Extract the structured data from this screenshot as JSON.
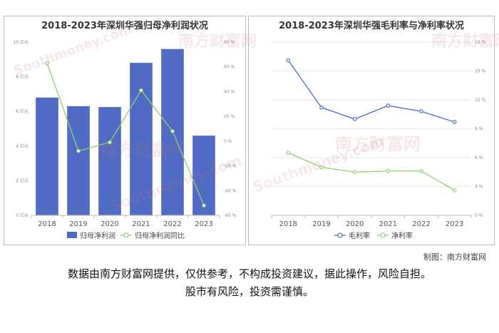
{
  "charts": [
    {
      "title": "2018-2023年深圳华强归母净利润状况"
    },
    {
      "title": "2018-2023年深圳华强毛利率与净利率状况"
    }
  ],
  "watermark": {
    "cn": "南方财富网",
    "en": "Southmoney.com"
  },
  "chart_data": [
    {
      "type": "bar",
      "title": "2018-2023年深圳华强归母净利润状况",
      "categories": [
        "2018",
        "2019",
        "2020",
        "2021",
        "2022",
        "2023"
      ],
      "series": [
        {
          "name": "归母净利润",
          "type": "bar",
          "axis": "left",
          "values": [
            6.8,
            6.3,
            6.25,
            8.8,
            9.6,
            4.6
          ]
        },
        {
          "name": "归母净利润同比",
          "type": "line",
          "axis": "right",
          "values": [
            63,
            -8,
            -1,
            41,
            8,
            -52
          ]
        }
      ],
      "y_left": {
        "ticks": [
          "0 亿元",
          "2 亿元",
          "4 亿元",
          "6 亿元",
          "8 亿元",
          "10 亿元"
        ],
        "range": [
          0,
          10
        ]
      },
      "y_right": {
        "ticks": [
          "-60 %",
          "-40 %",
          "-20 %",
          "0 %",
          "20 %",
          "40 %",
          "60 %",
          "80 %"
        ],
        "range": [
          -60,
          80
        ]
      },
      "colors": {
        "bar": "#4f6bc4",
        "line": "#8fd16f"
      },
      "legend_position": "bottom",
      "grid": false
    },
    {
      "type": "line",
      "title": "2018-2023年深圳华强毛利率与净利率状况",
      "categories": [
        "2018",
        "2019",
        "2020",
        "2021",
        "2022",
        "2023"
      ],
      "series": [
        {
          "name": "毛利率",
          "values": [
            16.1,
            11.2,
            10.0,
            11.4,
            10.8,
            9.7
          ]
        },
        {
          "name": "净利率",
          "values": [
            6.5,
            5.0,
            4.5,
            4.6,
            4.6,
            2.6
          ]
        }
      ],
      "y_right": {
        "ticks": [
          "0 %",
          "3 %",
          "6 %",
          "9 %",
          "12 %",
          "15 %",
          "18 %"
        ],
        "range": [
          0,
          18
        ]
      },
      "colors": {
        "gross": "#4a6fc0",
        "net": "#8fd16f"
      },
      "legend_position": "bottom",
      "grid": "horizontal"
    }
  ],
  "credit": "制图：南方财富网",
  "disclaimer": {
    "line1": "数据由南方财富网提供，仅供参考，不构成投资建议，据此操作，风险自担。",
    "line2": "股市有风险，投资需谨慎。"
  }
}
